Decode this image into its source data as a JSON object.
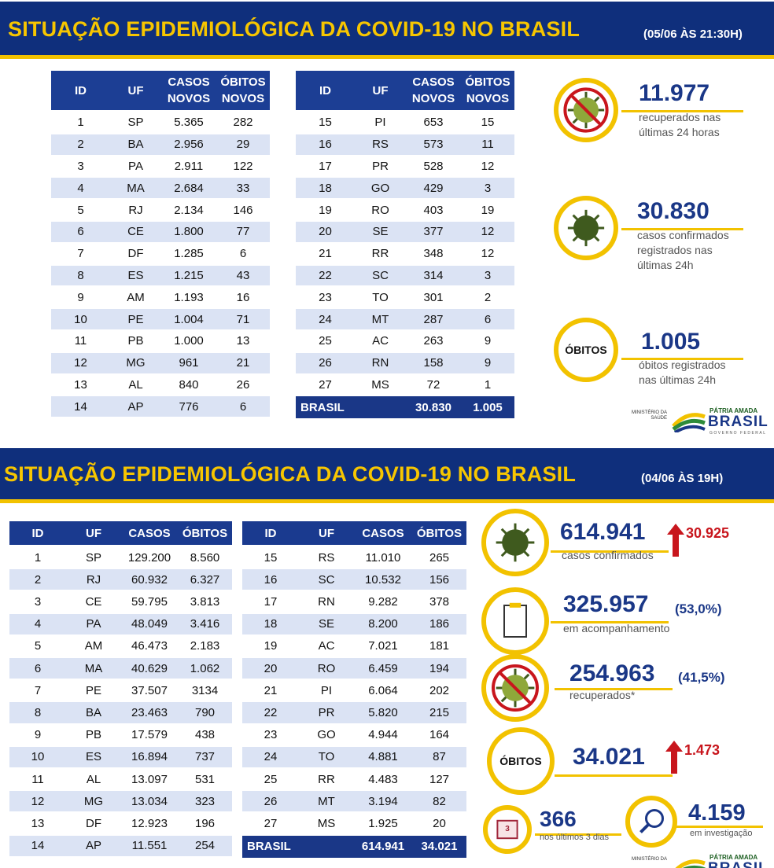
{
  "panels": [
    {
      "title": "SITUAÇÃO EPIDEMIOLÓGICA DA COVID-19 NO BRASIL",
      "date": "(05/06 ÀS 21:30H)",
      "headers": [
        "ID",
        "UF",
        "CASOS NOVOS",
        "ÓBITOS NOVOS"
      ],
      "tables": [
        {
          "rows": [
            [
              "1",
              "SP",
              "5.365",
              "282"
            ],
            [
              "2",
              "BA",
              "2.956",
              "29"
            ],
            [
              "3",
              "PA",
              "2.911",
              "122"
            ],
            [
              "4",
              "MA",
              "2.684",
              "33"
            ],
            [
              "5",
              "RJ",
              "2.134",
              "146"
            ],
            [
              "6",
              "CE",
              "1.800",
              "77"
            ],
            [
              "7",
              "DF",
              "1.285",
              "6"
            ],
            [
              "8",
              "ES",
              "1.215",
              "43"
            ],
            [
              "9",
              "AM",
              "1.193",
              "16"
            ],
            [
              "10",
              "PE",
              "1.004",
              "71"
            ],
            [
              "11",
              "PB",
              "1.000",
              "13"
            ],
            [
              "12",
              "MG",
              "961",
              "21"
            ],
            [
              "13",
              "AL",
              "840",
              "26"
            ],
            [
              "14",
              "AP",
              "776",
              "6"
            ]
          ]
        },
        {
          "rows": [
            [
              "15",
              "PI",
              "653",
              "15"
            ],
            [
              "16",
              "RS",
              "573",
              "11"
            ],
            [
              "17",
              "PR",
              "528",
              "12"
            ],
            [
              "18",
              "GO",
              "429",
              "3"
            ],
            [
              "19",
              "RO",
              "403",
              "19"
            ],
            [
              "20",
              "SE",
              "377",
              "12"
            ],
            [
              "21",
              "RR",
              "348",
              "12"
            ],
            [
              "22",
              "SC",
              "314",
              "3"
            ],
            [
              "23",
              "TO",
              "301",
              "2"
            ],
            [
              "24",
              "MT",
              "287",
              "6"
            ],
            [
              "25",
              "AC",
              "263",
              "9"
            ],
            [
              "26",
              "RN",
              "158",
              "9"
            ],
            [
              "27",
              "MS",
              "72",
              "1"
            ]
          ],
          "total": [
            "BRASIL",
            "30.830",
            "1.005"
          ]
        }
      ],
      "stats": [
        {
          "value": "11.977",
          "sub": [
            "recuperados nas",
            "últimas 24 horas"
          ]
        },
        {
          "value": "30.830",
          "sub": [
            "casos confirmados",
            "registrados nas",
            "últimas 24h"
          ]
        },
        {
          "label": "ÓBITOS",
          "value": "1.005",
          "sub": [
            "óbitos registrados",
            "nas últimas 24h"
          ]
        }
      ],
      "logo": {
        "ministry": "MINISTÉRIO DA SAÚDE",
        "motto": "PÁTRIA AMADA",
        "country": "BRASIL",
        "government": "GOVERNO FEDERAL"
      }
    },
    {
      "title": "SITUAÇÃO EPIDEMIOLÓGICA DA COVID-19 NO BRASIL",
      "date": "(04/06 ÀS 19H)",
      "headers": [
        "ID",
        "UF",
        "CASOS",
        "ÓBITOS"
      ],
      "tables": [
        {
          "rows": [
            [
              "1",
              "SP",
              "129.200",
              "8.560"
            ],
            [
              "2",
              "RJ",
              "60.932",
              "6.327"
            ],
            [
              "3",
              "CE",
              "59.795",
              "3.813"
            ],
            [
              "4",
              "PA",
              "48.049",
              "3.416"
            ],
            [
              "5",
              "AM",
              "46.473",
              "2.183"
            ],
            [
              "6",
              "MA",
              "40.629",
              "1.062"
            ],
            [
              "7",
              "PE",
              "37.507",
              "3134"
            ],
            [
              "8",
              "BA",
              "23.463",
              "790"
            ],
            [
              "9",
              "PB",
              "17.579",
              "438"
            ],
            [
              "10",
              "ES",
              "16.894",
              "737"
            ],
            [
              "11",
              "AL",
              "13.097",
              "531"
            ],
            [
              "12",
              "MG",
              "13.034",
              "323"
            ],
            [
              "13",
              "DF",
              "12.923",
              "196"
            ],
            [
              "14",
              "AP",
              "11.551",
              "254"
            ]
          ]
        },
        {
          "rows": [
            [
              "15",
              "RS",
              "11.010",
              "265"
            ],
            [
              "16",
              "SC",
              "10.532",
              "156"
            ],
            [
              "17",
              "RN",
              "9.282",
              "378"
            ],
            [
              "18",
              "SE",
              "8.200",
              "186"
            ],
            [
              "19",
              "AC",
              "7.021",
              "181"
            ],
            [
              "20",
              "RO",
              "6.459",
              "194"
            ],
            [
              "21",
              "PI",
              "6.064",
              "202"
            ],
            [
              "22",
              "PR",
              "5.820",
              "215"
            ],
            [
              "23",
              "GO",
              "4.944",
              "164"
            ],
            [
              "24",
              "TO",
              "4.881",
              "87"
            ],
            [
              "25",
              "RR",
              "4.483",
              "127"
            ],
            [
              "26",
              "MT",
              "3.194",
              "82"
            ],
            [
              "27",
              "MS",
              "1.925",
              "20"
            ]
          ],
          "total": [
            "BRASIL",
            "614.941",
            "34.021"
          ]
        }
      ],
      "stats": [
        {
          "value": "614.941",
          "change": "30.925",
          "sub": [
            "casos confirmados"
          ]
        },
        {
          "value": "325.957",
          "note": "(53,0%)",
          "sub": [
            "em acompanhamento"
          ]
        },
        {
          "value": "254.963",
          "note": "(41,5%)",
          "sub": [
            "recuperados*"
          ]
        },
        {
          "label": "ÓBITOS",
          "value": "34.021",
          "change": "1.473"
        },
        {
          "label": "3",
          "value": "366",
          "sub": [
            "nos últimos 3 dias"
          ]
        },
        {
          "value": "4.159",
          "sub": [
            "em investigação"
          ]
        }
      ],
      "logo": {
        "ministry": "MINISTÉRIO DA",
        "motto": "PÁTRIA AMADA",
        "country": "BRASIL"
      }
    }
  ]
}
